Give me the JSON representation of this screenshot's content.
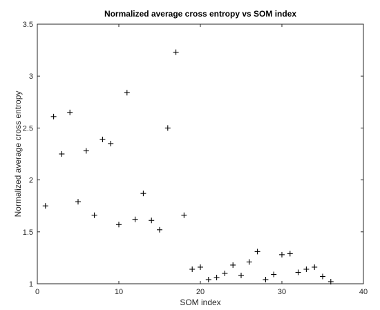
{
  "chart_data": {
    "type": "scatter",
    "title": "Normalized average cross entropy vs SOM index",
    "xlabel": "SOM index",
    "ylabel": "Normalized average cross entropy",
    "xlim": [
      0,
      40
    ],
    "ylim": [
      1,
      3.5
    ],
    "xticks": [
      0,
      10,
      20,
      30,
      40
    ],
    "yticks": [
      1,
      1.5,
      2,
      2.5,
      3,
      3.5
    ],
    "xtick_labels": [
      "0",
      "10",
      "20",
      "30",
      "40"
    ],
    "ytick_labels": [
      "1",
      "1.5",
      "2",
      "2.5",
      "3",
      "3.5"
    ],
    "marker": "plus",
    "marker_color": "#000000",
    "grid": false,
    "x": [
      1,
      2,
      3,
      4,
      5,
      6,
      7,
      8,
      9,
      10,
      11,
      12,
      13,
      14,
      15,
      16,
      17,
      18,
      19,
      20,
      21,
      22,
      23,
      24,
      25,
      26,
      27,
      28,
      29,
      30,
      31,
      32,
      33,
      34,
      35,
      36
    ],
    "y": [
      1.75,
      2.61,
      2.25,
      2.65,
      1.79,
      2.28,
      1.66,
      2.39,
      2.35,
      1.57,
      2.84,
      1.62,
      1.87,
      1.61,
      1.52,
      2.5,
      3.23,
      1.66,
      1.14,
      1.16,
      1.04,
      1.06,
      1.1,
      1.18,
      1.08,
      1.21,
      1.31,
      1.04,
      1.09,
      1.28,
      1.29,
      1.11,
      1.14,
      1.16,
      1.07,
      1.02
    ]
  }
}
